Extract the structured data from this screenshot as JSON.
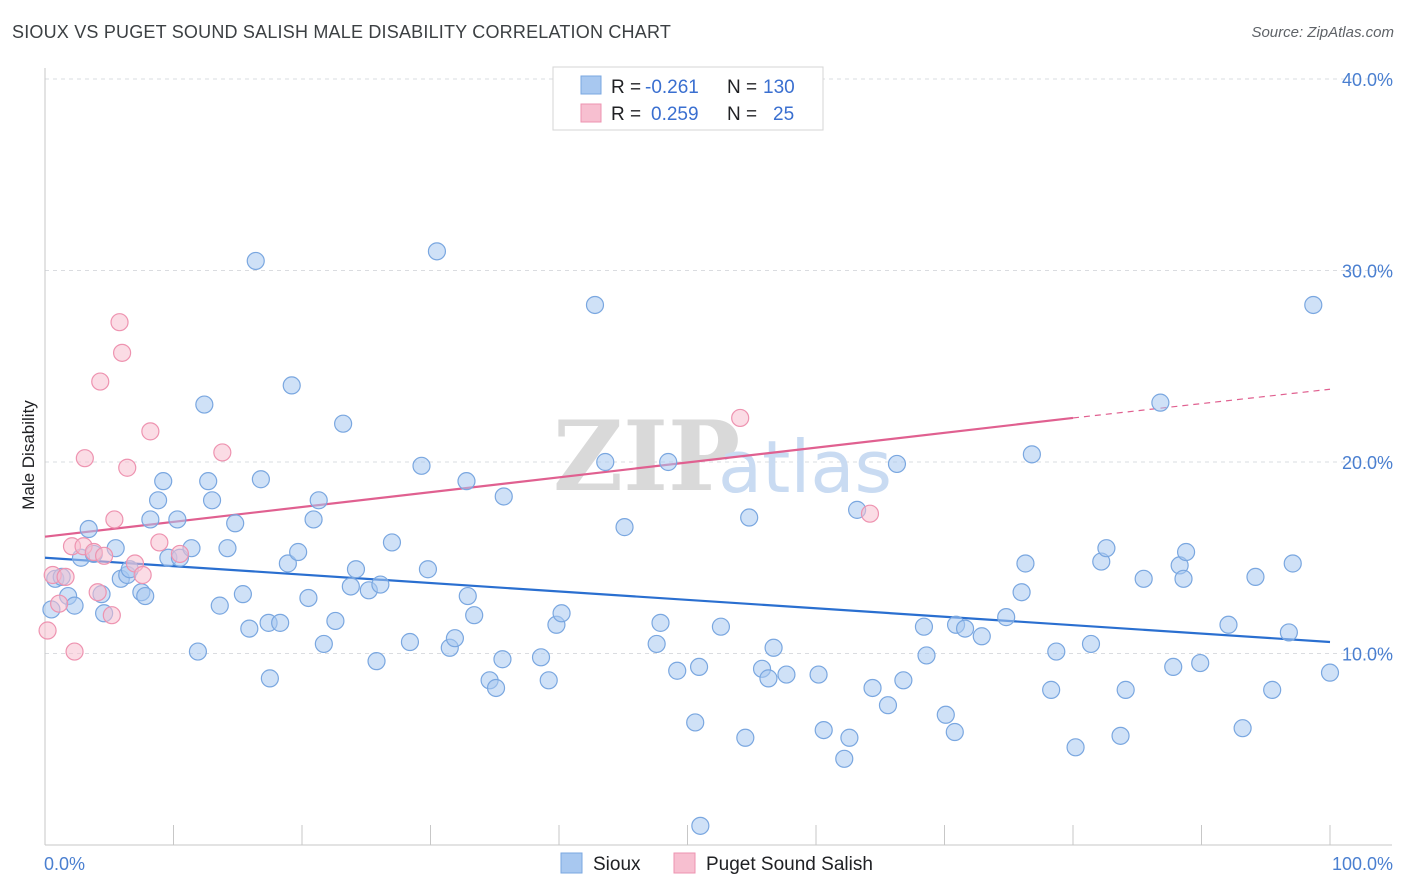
{
  "header": {
    "title": "SIOUX VS PUGET SOUND SALISH MALE DISABILITY CORRELATION CHART",
    "source": "Source: ZipAtlas.com"
  },
  "watermark": {
    "zip": "ZIP",
    "atlas": "atlas"
  },
  "colors": {
    "sioux_fill": "#a8c8f0",
    "sioux_stroke": "#7aa7e0",
    "sioux_line": "#2a6fd0",
    "salish_fill": "#f7bfd0",
    "salish_stroke": "#ee93b0",
    "salish_line": "#e06090",
    "grid": "#dadce0",
    "axis_label": "#4a7fd0"
  },
  "legend": {
    "rows": [
      {
        "r_label": "R =",
        "r_value": "-0.261",
        "n_label": "N =",
        "n_value": "130"
      },
      {
        "r_label": "R =",
        "r_value": "0.259",
        "n_label": "N =",
        "n_value": "25"
      }
    ]
  },
  "chart_data": {
    "type": "scatter",
    "title": "SIOUX VS PUGET SOUND SALISH MALE DISABILITY CORRELATION CHART",
    "xlabel": "",
    "ylabel": "Male Disability",
    "xlim": [
      0,
      100
    ],
    "ylim": [
      0,
      40
    ],
    "x_tick_labels": [
      "0.0%",
      "100.0%"
    ],
    "y_ticks": [
      10,
      20,
      30,
      40
    ],
    "y_tick_labels": [
      "10.0%",
      "20.0%",
      "30.0%",
      "40.0%"
    ],
    "grid": true,
    "series": [
      {
        "name": "Sioux",
        "r": -0.261,
        "n": 130,
        "trend": {
          "x0": 0,
          "y0": 15.0,
          "x1": 100,
          "y1": 10.6
        },
        "points": [
          [
            0.5,
            12.3
          ],
          [
            0.8,
            13.9
          ],
          [
            1.3,
            14.0
          ],
          [
            1.8,
            13.0
          ],
          [
            2.3,
            12.5
          ],
          [
            2.8,
            15.0
          ],
          [
            3.4,
            16.5
          ],
          [
            3.8,
            15.2
          ],
          [
            4.4,
            13.1
          ],
          [
            4.6,
            12.1
          ],
          [
            5.5,
            15.5
          ],
          [
            5.9,
            13.9
          ],
          [
            6.4,
            14.1
          ],
          [
            6.6,
            14.4
          ],
          [
            7.5,
            13.2
          ],
          [
            7.8,
            13.0
          ],
          [
            8.2,
            17.0
          ],
          [
            8.8,
            18.0
          ],
          [
            9.2,
            19.0
          ],
          [
            9.6,
            15.0
          ],
          [
            10.3,
            17.0
          ],
          [
            10.5,
            15.0
          ],
          [
            11.4,
            15.5
          ],
          [
            11.9,
            10.1
          ],
          [
            12.4,
            23.0
          ],
          [
            12.7,
            19.0
          ],
          [
            13.0,
            18.0
          ],
          [
            13.6,
            12.5
          ],
          [
            14.2,
            15.5
          ],
          [
            14.8,
            16.8
          ],
          [
            15.4,
            13.1
          ],
          [
            15.9,
            11.3
          ],
          [
            16.4,
            30.5
          ],
          [
            16.8,
            19.1
          ],
          [
            17.4,
            11.6
          ],
          [
            17.5,
            8.7
          ],
          [
            18.3,
            11.6
          ],
          [
            18.9,
            14.7
          ],
          [
            19.2,
            24.0
          ],
          [
            19.7,
            15.3
          ],
          [
            20.5,
            12.9
          ],
          [
            20.9,
            17.0
          ],
          [
            21.3,
            18.0
          ],
          [
            21.7,
            10.5
          ],
          [
            22.6,
            11.7
          ],
          [
            23.2,
            22.0
          ],
          [
            23.8,
            13.5
          ],
          [
            24.2,
            14.4
          ],
          [
            25.2,
            13.3
          ],
          [
            25.8,
            9.6
          ],
          [
            26.1,
            13.6
          ],
          [
            27.0,
            15.8
          ],
          [
            28.4,
            10.6
          ],
          [
            29.3,
            19.8
          ],
          [
            29.8,
            14.4
          ],
          [
            30.5,
            31.0
          ],
          [
            31.5,
            10.3
          ],
          [
            31.9,
            10.8
          ],
          [
            32.8,
            19.0
          ],
          [
            32.9,
            13.0
          ],
          [
            33.4,
            12.0
          ],
          [
            34.6,
            8.6
          ],
          [
            35.1,
            8.2
          ],
          [
            35.6,
            9.7
          ],
          [
            35.7,
            18.2
          ],
          [
            38.6,
            9.8
          ],
          [
            39.2,
            8.6
          ],
          [
            39.8,
            11.5
          ],
          [
            40.2,
            12.1
          ],
          [
            42.8,
            28.2
          ],
          [
            43.6,
            20.0
          ],
          [
            45.1,
            16.6
          ],
          [
            47.6,
            10.5
          ],
          [
            47.9,
            11.6
          ],
          [
            48.5,
            20.0
          ],
          [
            49.2,
            9.1
          ],
          [
            50.6,
            6.4
          ],
          [
            50.9,
            9.3
          ],
          [
            51.0,
            1.0
          ],
          [
            52.6,
            11.4
          ],
          [
            54.5,
            5.6
          ],
          [
            54.8,
            17.1
          ],
          [
            55.8,
            9.2
          ],
          [
            56.3,
            8.7
          ],
          [
            56.7,
            10.3
          ],
          [
            57.7,
            8.9
          ],
          [
            60.2,
            8.9
          ],
          [
            60.6,
            6.0
          ],
          [
            62.2,
            4.5
          ],
          [
            62.6,
            5.6
          ],
          [
            63.2,
            17.5
          ],
          [
            64.4,
            8.2
          ],
          [
            65.6,
            7.3
          ],
          [
            66.3,
            19.9
          ],
          [
            66.8,
            8.6
          ],
          [
            68.4,
            11.4
          ],
          [
            68.6,
            9.9
          ],
          [
            70.1,
            6.8
          ],
          [
            70.8,
            5.9
          ],
          [
            70.9,
            11.5
          ],
          [
            71.6,
            11.3
          ],
          [
            72.9,
            10.9
          ],
          [
            74.8,
            11.9
          ],
          [
            76.0,
            13.2
          ],
          [
            76.3,
            14.7
          ],
          [
            76.8,
            20.4
          ],
          [
            78.3,
            8.1
          ],
          [
            78.7,
            10.1
          ],
          [
            80.2,
            5.1
          ],
          [
            81.4,
            10.5
          ],
          [
            82.2,
            14.8
          ],
          [
            82.6,
            15.5
          ],
          [
            83.7,
            5.7
          ],
          [
            84.1,
            8.1
          ],
          [
            85.5,
            13.9
          ],
          [
            86.8,
            23.1
          ],
          [
            87.8,
            9.3
          ],
          [
            88.3,
            14.6
          ],
          [
            88.6,
            13.9
          ],
          [
            88.8,
            15.3
          ],
          [
            89.9,
            9.5
          ],
          [
            92.1,
            11.5
          ],
          [
            93.2,
            6.1
          ],
          [
            94.2,
            14.0
          ],
          [
            95.5,
            8.1
          ],
          [
            96.8,
            11.1
          ],
          [
            97.1,
            14.7
          ],
          [
            98.7,
            28.2
          ],
          [
            100.0,
            9.0
          ]
        ]
      },
      {
        "name": "Puget Sound Salish",
        "r": 0.259,
        "n": 25,
        "trend": {
          "x0": 0,
          "y0": 16.1,
          "x1": 80,
          "y1": 22.3,
          "dashed_to_x": 100,
          "dashed_to_y": 23.8
        },
        "points": [
          [
            0.2,
            11.2
          ],
          [
            0.6,
            14.1
          ],
          [
            1.1,
            12.6
          ],
          [
            1.6,
            14.0
          ],
          [
            2.1,
            15.6
          ],
          [
            2.3,
            10.1
          ],
          [
            3.0,
            15.6
          ],
          [
            3.1,
            20.2
          ],
          [
            3.8,
            15.3
          ],
          [
            4.1,
            13.2
          ],
          [
            4.3,
            24.2
          ],
          [
            4.6,
            15.1
          ],
          [
            5.2,
            12.0
          ],
          [
            5.4,
            17.0
          ],
          [
            5.8,
            27.3
          ],
          [
            6.0,
            25.7
          ],
          [
            6.4,
            19.7
          ],
          [
            7.0,
            14.7
          ],
          [
            7.6,
            14.1
          ],
          [
            8.2,
            21.6
          ],
          [
            8.9,
            15.8
          ],
          [
            10.5,
            15.2
          ],
          [
            13.8,
            20.5
          ],
          [
            54.1,
            22.3
          ],
          [
            64.2,
            17.3
          ]
        ]
      }
    ]
  },
  "bottom_legend": {
    "items": [
      "Sioux",
      "Puget Sound Salish"
    ]
  }
}
